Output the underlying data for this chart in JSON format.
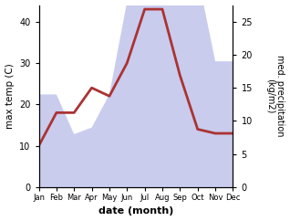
{
  "months": [
    "Jan",
    "Feb",
    "Mar",
    "Apr",
    "May",
    "Jun",
    "Jul",
    "Aug",
    "Sep",
    "Oct",
    "Nov",
    "Dec"
  ],
  "month_indices": [
    1,
    2,
    3,
    4,
    5,
    6,
    7,
    8,
    9,
    10,
    11,
    12
  ],
  "temperature": [
    10,
    18,
    18,
    24,
    22,
    30,
    43,
    43,
    27,
    14,
    13,
    13
  ],
  "precipitation": [
    14,
    14,
    8,
    9,
    14,
    28,
    42,
    33,
    35,
    32,
    19,
    19
  ],
  "temp_color": "#aa3333",
  "precip_fill_color": "#b8bce8",
  "temp_ylim": [
    0,
    44
  ],
  "precip_ylim": [
    0,
    27.5
  ],
  "temp_yticks": [
    0,
    10,
    20,
    30,
    40
  ],
  "precip_yticks": [
    0,
    5,
    10,
    15,
    20,
    25
  ],
  "xlabel": "date (month)",
  "ylabel_left": "max temp (C)",
  "ylabel_right": "med. precipitation\n(kg/m2)",
  "background_color": "#ffffff",
  "line_width": 2.0,
  "figsize": [
    3.18,
    2.42
  ],
  "dpi": 100
}
